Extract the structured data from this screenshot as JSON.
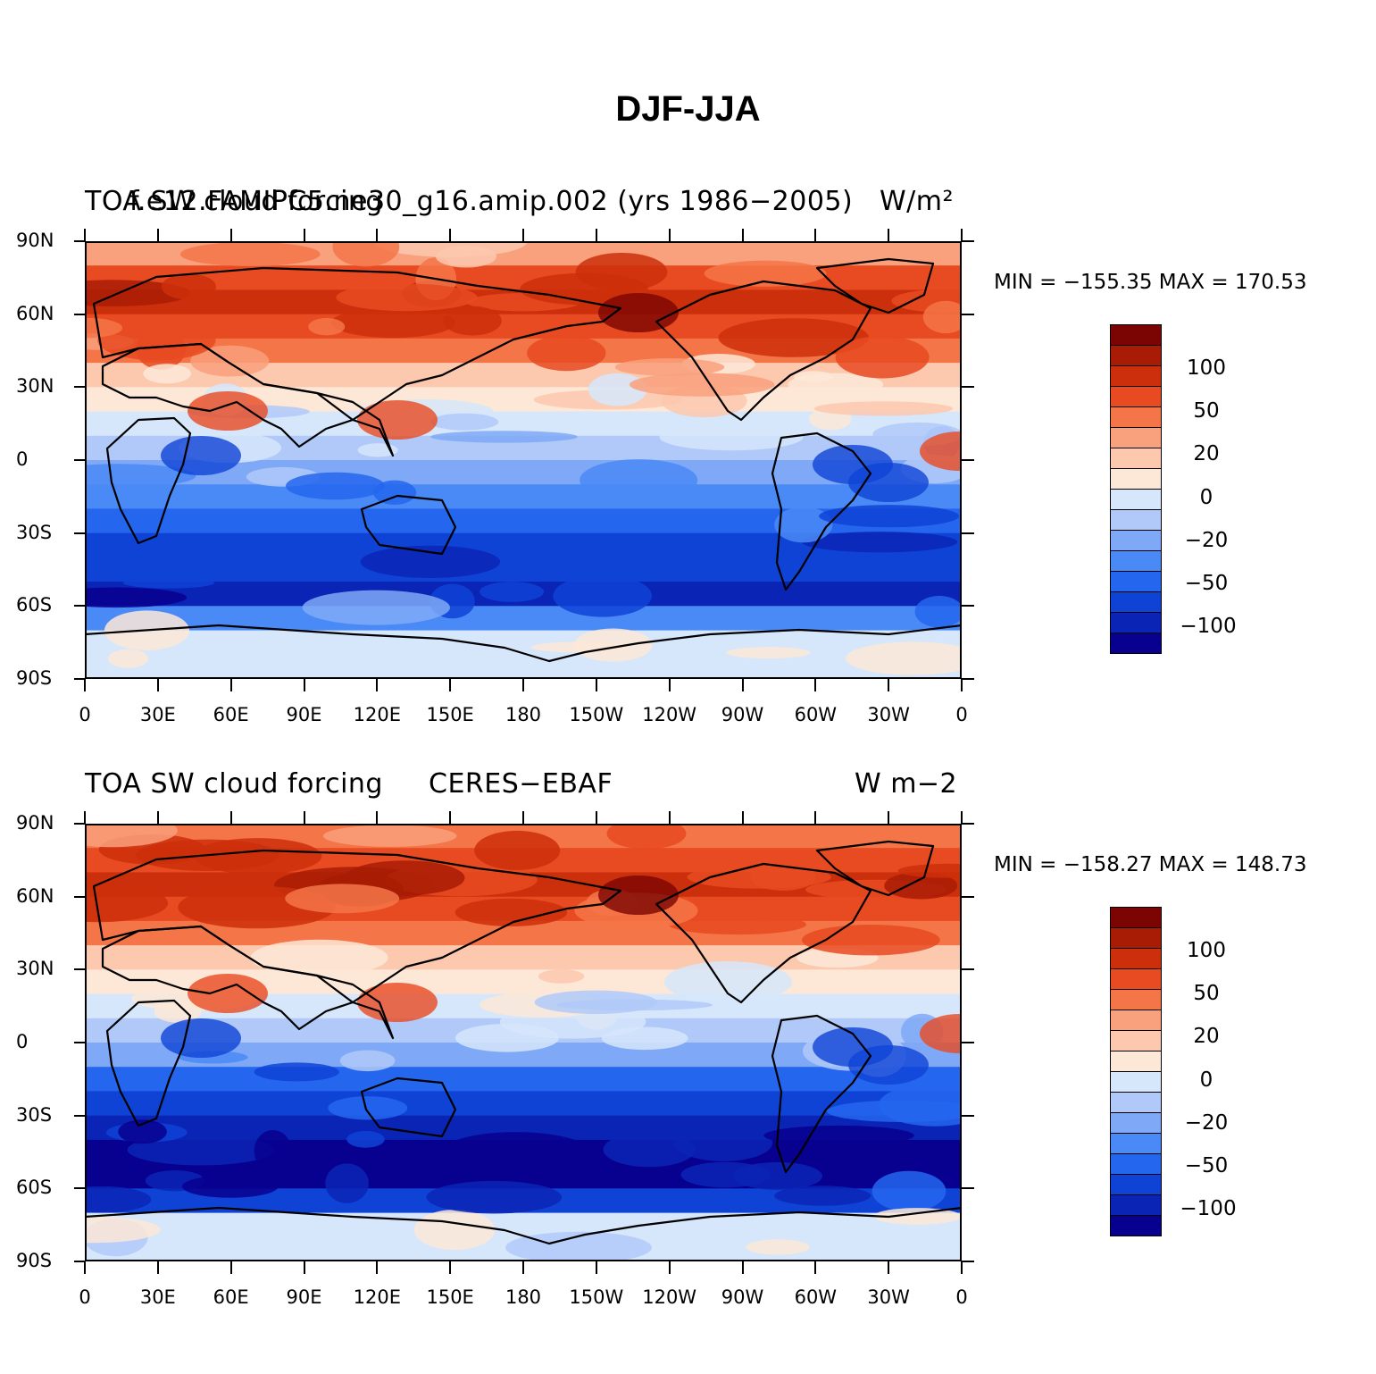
{
  "figure": {
    "title": "DJF-JJA"
  },
  "colors": {
    "levels": [
      "#08008f",
      "#0a24b5",
      "#0f43d6",
      "#2566ef",
      "#4a8af6",
      "#7fa9f7",
      "#b0c9f8",
      "#d6e6fb",
      "#fde7d7",
      "#fcc8ae",
      "#f9a07d",
      "#f47548",
      "#e84a21",
      "#cc2f0b",
      "#a81c05",
      "#7a0502"
    ]
  },
  "colorbar": {
    "labels": [
      "100",
      "50",
      "20",
      "0",
      "−20",
      "−50",
      "−100"
    ]
  },
  "axes": {
    "lat_labels": [
      "90N",
      "60N",
      "30N",
      "0",
      "30S",
      "60S",
      "90S"
    ],
    "lon_labels": [
      "0",
      "30E",
      "60E",
      "90E",
      "120E",
      "150E",
      "180",
      "150W",
      "120W",
      "90W",
      "60W",
      "30W",
      "0"
    ]
  },
  "panels": [
    {
      "left_title": "TOA SW cloud forcing",
      "center_title": "f.e12.FAMIPC5.ne30_g16.amip.002 (yrs 1986−2005)",
      "units": "W/m²",
      "min": "−155.35",
      "max": "170.53",
      "minmax_text": "MIN = −155.35 MAX = 170.53"
    },
    {
      "left_title": "TOA SW cloud forcing",
      "center_title": "CERES−EBAF",
      "units": "W m−2",
      "min": "−158.27",
      "max": "148.73",
      "minmax_text": "MIN = −158.27 MAX = 148.73"
    }
  ],
  "chart_data": {
    "type": "heatmap",
    "title": "DJF-JJA",
    "variable": "TOA SW cloud forcing",
    "contour_levels": [
      -100,
      -50,
      -20,
      0,
      20,
      50,
      100
    ],
    "xlabel": "",
    "ylabel": "",
    "xlim": [
      0,
      360
    ],
    "ylim": [
      -90,
      90
    ],
    "panels": [
      {
        "name": "f.e12.FAMIPC5.ne30_g16.amip.002 (yrs 1986−2005)",
        "units": "W/m²",
        "min": -155.35,
        "max": 170.53
      },
      {
        "name": "CERES−EBAF",
        "units": "W m−2",
        "min": -158.27,
        "max": 148.73
      }
    ]
  }
}
